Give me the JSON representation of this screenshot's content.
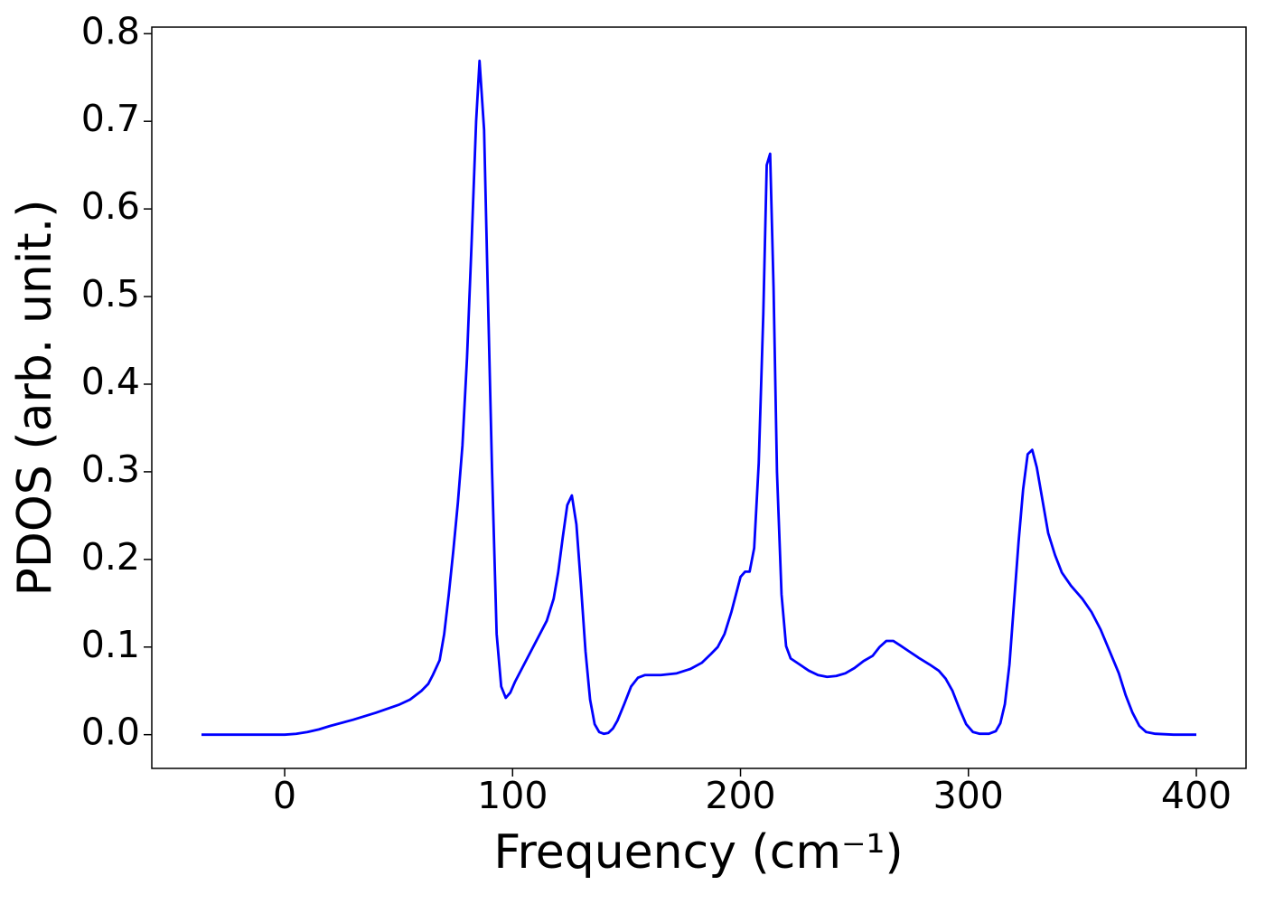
{
  "chart_data": {
    "type": "line",
    "xlabel": "Frequency (cm⁻¹)",
    "ylabel": "PDOS (arb. unit.)",
    "color": "#0000ff",
    "x": [
      -36.5,
      0,
      5,
      10,
      15,
      20,
      30,
      40,
      50,
      55,
      60,
      63,
      65,
      68,
      70,
      72,
      74,
      76,
      78,
      80,
      82,
      84,
      85.5,
      87.5,
      89,
      91,
      93,
      95,
      97,
      99,
      101,
      104,
      108,
      112,
      115,
      118,
      120,
      122,
      124,
      126,
      128,
      130,
      132,
      134,
      136,
      138,
      140,
      142,
      144,
      146,
      149,
      152,
      155,
      158,
      165,
      172,
      178,
      183,
      187,
      190,
      193,
      196,
      198,
      200,
      202,
      204,
      206,
      208,
      210,
      211.5,
      213,
      214.5,
      216,
      218,
      220,
      222,
      226,
      230,
      234,
      238,
      242,
      246,
      250,
      254,
      258,
      261,
      264,
      267,
      270,
      274,
      278,
      283,
      287,
      290,
      293,
      296,
      299,
      302,
      305,
      309,
      312,
      314,
      316,
      318,
      320,
      322,
      324,
      326,
      328,
      330,
      333,
      335,
      338,
      341,
      345,
      350,
      354,
      358,
      362,
      366,
      369,
      372,
      375,
      378,
      382,
      390,
      400
    ],
    "values": [
      0,
      0,
      0.001,
      0.003,
      0.006,
      0.01,
      0.017,
      0.025,
      0.034,
      0.04,
      0.05,
      0.058,
      0.068,
      0.085,
      0.115,
      0.16,
      0.21,
      0.265,
      0.33,
      0.43,
      0.56,
      0.7,
      0.769,
      0.69,
      0.52,
      0.3,
      0.115,
      0.055,
      0.042,
      0.048,
      0.06,
      0.075,
      0.095,
      0.115,
      0.13,
      0.155,
      0.185,
      0.225,
      0.262,
      0.273,
      0.24,
      0.17,
      0.095,
      0.04,
      0.012,
      0.003,
      0.001,
      0.002,
      0.007,
      0.016,
      0.035,
      0.055,
      0.065,
      0.068,
      0.068,
      0.07,
      0.075,
      0.082,
      0.092,
      0.1,
      0.115,
      0.14,
      0.16,
      0.18,
      0.186,
      0.186,
      0.213,
      0.31,
      0.48,
      0.65,
      0.663,
      0.51,
      0.3,
      0.16,
      0.101,
      0.087,
      0.08,
      0.073,
      0.068,
      0.066,
      0.067,
      0.07,
      0.076,
      0.084,
      0.09,
      0.1,
      0.107,
      0.107,
      0.102,
      0.095,
      0.088,
      0.08,
      0.073,
      0.064,
      0.05,
      0.03,
      0.012,
      0.003,
      0.001,
      0.001,
      0.004,
      0.013,
      0.035,
      0.08,
      0.15,
      0.22,
      0.28,
      0.32,
      0.325,
      0.305,
      0.26,
      0.23,
      0.205,
      0.185,
      0.17,
      0.155,
      0.14,
      0.12,
      0.095,
      0.07,
      0.045,
      0.025,
      0.01,
      0.003,
      0.001,
      0,
      0
    ],
    "xlim": [
      -58.3,
      421.8
    ],
    "ylim": [
      -0.0385,
      0.8075
    ],
    "xticks": [
      0,
      100,
      200,
      300,
      400
    ],
    "yticks": [
      {
        "value": 0,
        "label": "0.0"
      },
      0.1,
      0.2,
      0.3,
      0.4,
      0.5,
      0.6,
      0.7,
      0.8
    ]
  }
}
